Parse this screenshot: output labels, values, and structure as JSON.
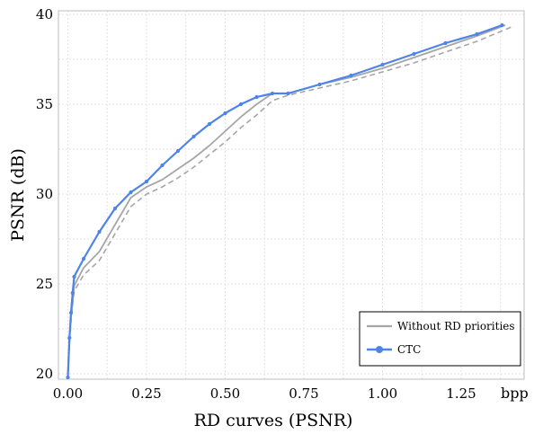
{
  "chart_data": {
    "type": "line",
    "title": "",
    "xlabel": "RD curves (PSNR)",
    "ylabel": "PSNR (dB)",
    "x_unit": "bpp",
    "xlim": [
      -0.03,
      1.45
    ],
    "ylim": [
      19.7,
      40.2
    ],
    "xticks": [
      0.0,
      0.25,
      0.5,
      0.75,
      1.0,
      1.25
    ],
    "xtick_labels": [
      "0.00",
      "0.25",
      "0.50",
      "0.75",
      "1.00",
      "1.25"
    ],
    "yticks": [
      20,
      25,
      30,
      35,
      40
    ],
    "ytick_labels": [
      "20",
      "25",
      "30",
      "35",
      "40"
    ],
    "grid": true,
    "legend_position": "bottom-right",
    "colors": {
      "ctc": "#4e84e8",
      "without_rd": "#a6a6a6",
      "grid": "#e3e3e3"
    },
    "series": [
      {
        "name": "Without RD priorities",
        "style": "solid",
        "legend": true,
        "x": [
          0.0,
          0.005,
          0.01,
          0.015,
          0.02,
          0.05,
          0.1,
          0.15,
          0.2,
          0.25,
          0.3,
          0.35,
          0.4,
          0.45,
          0.5,
          0.55,
          0.6,
          0.65,
          0.7,
          0.8,
          0.9,
          1.0,
          1.1,
          1.2,
          1.3,
          1.39
        ],
        "y": [
          20.0,
          22.0,
          23.2,
          24.0,
          24.9,
          25.9,
          26.8,
          28.3,
          29.8,
          30.4,
          30.8,
          31.4,
          32.0,
          32.7,
          33.5,
          34.3,
          35.0,
          35.6,
          35.6,
          36.1,
          36.5,
          37.0,
          37.6,
          38.2,
          38.8,
          39.4
        ]
      },
      {
        "name": "",
        "style": "dashed",
        "legend": false,
        "x": [
          0.0,
          0.005,
          0.01,
          0.015,
          0.02,
          0.05,
          0.1,
          0.15,
          0.2,
          0.25,
          0.3,
          0.35,
          0.4,
          0.45,
          0.5,
          0.55,
          0.6,
          0.65,
          0.7,
          0.8,
          0.9,
          1.0,
          1.1,
          1.2,
          1.3,
          1.41
        ],
        "y": [
          19.8,
          21.7,
          22.9,
          23.8,
          24.6,
          25.5,
          26.3,
          27.8,
          29.3,
          30.0,
          30.4,
          30.9,
          31.5,
          32.2,
          32.9,
          33.7,
          34.4,
          35.2,
          35.5,
          35.9,
          36.3,
          36.8,
          37.3,
          37.9,
          38.5,
          39.3
        ]
      },
      {
        "name": "CTC",
        "style": "solid-markers",
        "legend": true,
        "x": [
          0.0,
          0.005,
          0.01,
          0.015,
          0.02,
          0.05,
          0.1,
          0.15,
          0.2,
          0.25,
          0.3,
          0.35,
          0.4,
          0.45,
          0.5,
          0.55,
          0.6,
          0.65,
          0.7,
          0.8,
          0.9,
          1.0,
          1.1,
          1.2,
          1.3,
          1.38
        ],
        "y": [
          19.8,
          22.0,
          23.4,
          24.5,
          25.4,
          26.4,
          27.9,
          29.2,
          30.1,
          30.7,
          31.6,
          32.4,
          33.2,
          33.9,
          34.5,
          35.0,
          35.4,
          35.6,
          35.6,
          36.1,
          36.6,
          37.2,
          37.8,
          38.4,
          38.9,
          39.4
        ]
      }
    ]
  }
}
